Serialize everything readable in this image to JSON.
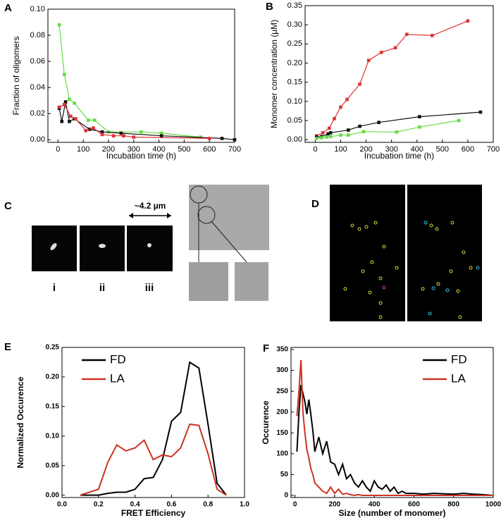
{
  "chart_data": [
    {
      "type": "line",
      "panel": "A",
      "markers": true,
      "x_label": "Incubation time (h)",
      "y_label": "Fraction of oligomers",
      "xlim": [
        -40,
        700
      ],
      "ylim": [
        -0.002,
        0.1
      ],
      "xticks": [
        0,
        100,
        200,
        300,
        400,
        500,
        600,
        700
      ],
      "yticks": [
        {
          "value": 0,
          "label": "0.00"
        },
        {
          "value": 0.02,
          "label": "0.02"
        },
        {
          "value": 0.04,
          "label": "0.04"
        },
        {
          "value": 0.06,
          "label": "0.06"
        },
        {
          "value": 0.08,
          "label": "0.08"
        },
        {
          "value": 0.1,
          "label": "0.10"
        }
      ],
      "series": [
        {
          "color": "#66dd44",
          "x": [
            5,
            25,
            45,
            65,
            120,
            145,
            200,
            330,
            410,
            565
          ],
          "values": [
            0.088,
            0.05,
            0.031,
            0.028,
            0.015,
            0.015,
            0.006,
            0.006,
            0.005,
            0.002
          ]
        },
        {
          "color": "#111111",
          "x": [
            5,
            15,
            30,
            45,
            65,
            125,
            175,
            250,
            410,
            650,
            700
          ],
          "values": [
            0.024,
            0.014,
            0.029,
            0.014,
            0.016,
            0.008,
            0.006,
            0.005,
            0.003,
            0.001,
            0
          ]
        },
        {
          "color": "#dd3333",
          "x": [
            5,
            25,
            50,
            70,
            110,
            140,
            175,
            220,
            260,
            300,
            600
          ],
          "values": [
            0.025,
            0.027,
            0.018,
            0.016,
            0.007,
            0.009,
            0.004,
            0.003,
            0.003,
            0.002,
            0.001
          ]
        }
      ]
    },
    {
      "type": "line",
      "panel": "B",
      "markers": true,
      "x_label": "Incubation time (h)",
      "y_label": "Monomer concentration (μM)",
      "xlim": [
        -40,
        700
      ],
      "ylim": [
        -0.007,
        0.35
      ],
      "xticks": [
        0,
        100,
        200,
        300,
        400,
        500,
        600,
        700
      ],
      "yticks": [
        {
          "value": 0,
          "label": "0.00"
        },
        {
          "value": 0.05,
          "label": "0.05"
        },
        {
          "value": 0.1,
          "label": "0.10"
        },
        {
          "value": 0.15,
          "label": "0.15"
        },
        {
          "value": 0.2,
          "label": "0.20"
        },
        {
          "value": 0.25,
          "label": "0.25"
        },
        {
          "value": 0.3,
          "label": "0.30"
        },
        {
          "value": 0.35,
          "label": "0.35"
        }
      ],
      "series": [
        {
          "color": "#dd3333",
          "x": [
            5,
            30,
            55,
            75,
            100,
            125,
            175,
            210,
            260,
            315,
            360,
            460,
            600
          ],
          "values": [
            0.01,
            0.018,
            0.03,
            0.055,
            0.085,
            0.105,
            0.145,
            0.207,
            0.228,
            0.24,
            0.275,
            0.272,
            0.31
          ]
        },
        {
          "color": "#111111",
          "x": [
            5,
            25,
            50,
            60,
            130,
            175,
            250,
            410,
            650
          ],
          "values": [
            0.007,
            0.008,
            0.015,
            0.018,
            0.025,
            0.035,
            0.045,
            0.06,
            0.072
          ]
        },
        {
          "color": "#66dd44",
          "x": [
            5,
            25,
            45,
            60,
            100,
            130,
            190,
            320,
            410,
            565
          ],
          "values": [
            0.003,
            0.005,
            0.007,
            0.008,
            0.012,
            0.012,
            0.021,
            0.02,
            0.033,
            0.05
          ]
        }
      ]
    },
    {
      "type": "line",
      "panel": "E",
      "markers": false,
      "legend": "upper left",
      "x_label": "FRET Efficiency",
      "y_label": "Normalized Occurence",
      "xlim": [
        0,
        1
      ],
      "ylim": [
        -0.004,
        0.25
      ],
      "xticks": [
        {
          "value": 0,
          "label": "0.0"
        },
        {
          "value": 0.2,
          "label": "0.2"
        },
        {
          "value": 0.4,
          "label": "0.4"
        },
        {
          "value": 0.6,
          "label": "0.6"
        },
        {
          "value": 0.8,
          "label": "0.8"
        },
        {
          "value": 1,
          "label": "1.0"
        }
      ],
      "yticks": [
        {
          "value": 0,
          "label": "0.00"
        },
        {
          "value": 0.05,
          "label": "0.05"
        },
        {
          "value": 0.1,
          "label": "0.10"
        },
        {
          "value": 0.15,
          "label": "0.15"
        },
        {
          "value": 0.2,
          "label": "0.20"
        },
        {
          "value": 0.25,
          "label": "0.25"
        }
      ],
      "series": [
        {
          "name": "FD",
          "color": "#000000",
          "x": [
            0.1,
            0.15,
            0.2,
            0.25,
            0.3,
            0.35,
            0.4,
            0.45,
            0.5,
            0.55,
            0.6,
            0.65,
            0.7,
            0.75,
            0.8,
            0.85,
            0.9
          ],
          "values": [
            0,
            0,
            0,
            0.003,
            0.005,
            0.005,
            0.01,
            0.028,
            0.03,
            0.06,
            0.125,
            0.14,
            0.225,
            0.215,
            0.12,
            0.02,
            0
          ]
        },
        {
          "name": "LA",
          "color": "#cc3322",
          "x": [
            0.1,
            0.15,
            0.2,
            0.25,
            0.3,
            0.35,
            0.4,
            0.45,
            0.5,
            0.55,
            0.6,
            0.65,
            0.7,
            0.75,
            0.8,
            0.85,
            0.9
          ],
          "values": [
            0,
            0.005,
            0.01,
            0.055,
            0.085,
            0.075,
            0.08,
            0.093,
            0.06,
            0.068,
            0.065,
            0.08,
            0.12,
            0.118,
            0.07,
            0.01,
            0
          ]
        }
      ]
    },
    {
      "type": "line",
      "panel": "F",
      "markers": false,
      "legend": "upper right",
      "x_label": "Size (number of monomer)",
      "y_label": "Occurence",
      "xlim": [
        -20,
        1000
      ],
      "ylim": [
        -5,
        355
      ],
      "xticks": [
        0,
        200,
        400,
        600,
        800,
        1000
      ],
      "yticks": [
        0,
        50,
        100,
        150,
        200,
        250,
        300,
        350
      ],
      "series": [
        {
          "name": "FD",
          "color": "#000000",
          "x": [
            10,
            20,
            30,
            40,
            50,
            60,
            70,
            80,
            90,
            100,
            120,
            140,
            160,
            180,
            200,
            220,
            240,
            260,
            280,
            300,
            320,
            340,
            360,
            380,
            400,
            420,
            440,
            460,
            480,
            500,
            520,
            540,
            560,
            580,
            600,
            650,
            700,
            800,
            850,
            900,
            950,
            1000
          ],
          "values": [
            105,
            200,
            265,
            245,
            225,
            195,
            230,
            195,
            155,
            105,
            140,
            100,
            130,
            80,
            75,
            50,
            75,
            40,
            50,
            30,
            20,
            35,
            20,
            10,
            35,
            20,
            15,
            25,
            10,
            20,
            5,
            10,
            5,
            5,
            5,
            3,
            5,
            3,
            5,
            3,
            2,
            0
          ]
        },
        {
          "name": "LA",
          "color": "#cc3322",
          "x": [
            10,
            20,
            30,
            40,
            50,
            60,
            70,
            80,
            90,
            100,
            120,
            140,
            160,
            180,
            200,
            220,
            240,
            260,
            280,
            300,
            320,
            340,
            360,
            380,
            400,
            420,
            440,
            460,
            480,
            500,
            520,
            540,
            560,
            580,
            600,
            650,
            700,
            800,
            850,
            900,
            950,
            1000
          ],
          "values": [
            190,
            250,
            325,
            200,
            150,
            110,
            90,
            65,
            50,
            30,
            20,
            10,
            5,
            20,
            5,
            15,
            3,
            5,
            2,
            0,
            2,
            0,
            0,
            0,
            0,
            0,
            0,
            0,
            0,
            0,
            0,
            0,
            0,
            0,
            0,
            0,
            0,
            0,
            0,
            0,
            0,
            0
          ]
        }
      ]
    }
  ],
  "figure_panels": [
    {
      "panel": "C",
      "scale": "~4.2 µm",
      "subpanels": [
        "i",
        "ii",
        "iii"
      ]
    },
    {
      "panel": "D"
    }
  ]
}
